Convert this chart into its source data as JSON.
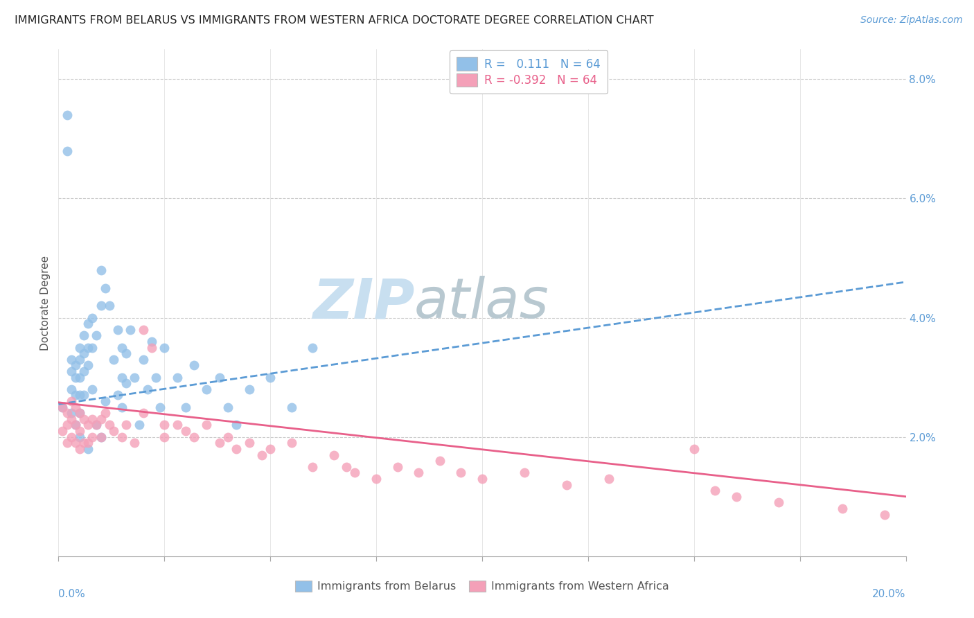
{
  "title": "IMMIGRANTS FROM BELARUS VS IMMIGRANTS FROM WESTERN AFRICA DOCTORATE DEGREE CORRELATION CHART",
  "source": "Source: ZipAtlas.com",
  "ylabel": "Doctorate Degree",
  "xlim": [
    0.0,
    0.2
  ],
  "ylim": [
    0.0,
    0.085
  ],
  "r_belarus": 0.111,
  "n_belarus": 64,
  "r_western_africa": -0.392,
  "n_western_africa": 64,
  "color_belarus": "#92C0E8",
  "color_western_africa": "#F4A0B8",
  "color_trend_belarus": "#5B9BD5",
  "color_trend_western_africa": "#E8608A",
  "watermark_zip": "ZIP",
  "watermark_atlas": "atlas",
  "watermark_color_zip": "#C8DFF0",
  "watermark_color_atlas": "#B8C8D0",
  "background_color": "#FFFFFF",
  "bel_trend_start_y": 0.0255,
  "bel_trend_end_y": 0.046,
  "waf_trend_start_y": 0.0258,
  "waf_trend_end_y": 0.01,
  "bel_x": [
    0.001,
    0.002,
    0.002,
    0.003,
    0.003,
    0.003,
    0.003,
    0.004,
    0.004,
    0.004,
    0.004,
    0.005,
    0.005,
    0.005,
    0.005,
    0.005,
    0.005,
    0.006,
    0.006,
    0.006,
    0.006,
    0.007,
    0.007,
    0.007,
    0.007,
    0.008,
    0.008,
    0.008,
    0.009,
    0.009,
    0.01,
    0.01,
    0.01,
    0.011,
    0.011,
    0.012,
    0.013,
    0.014,
    0.014,
    0.015,
    0.015,
    0.015,
    0.016,
    0.016,
    0.017,
    0.018,
    0.019,
    0.02,
    0.021,
    0.022,
    0.023,
    0.024,
    0.025,
    0.028,
    0.03,
    0.032,
    0.035,
    0.038,
    0.04,
    0.042,
    0.045,
    0.05,
    0.055,
    0.06
  ],
  "bel_y": [
    0.025,
    0.074,
    0.068,
    0.033,
    0.031,
    0.028,
    0.024,
    0.032,
    0.03,
    0.027,
    0.022,
    0.035,
    0.033,
    0.03,
    0.027,
    0.024,
    0.02,
    0.037,
    0.034,
    0.031,
    0.027,
    0.039,
    0.035,
    0.032,
    0.018,
    0.04,
    0.035,
    0.028,
    0.037,
    0.022,
    0.048,
    0.042,
    0.02,
    0.045,
    0.026,
    0.042,
    0.033,
    0.038,
    0.027,
    0.035,
    0.03,
    0.025,
    0.034,
    0.029,
    0.038,
    0.03,
    0.022,
    0.033,
    0.028,
    0.036,
    0.03,
    0.025,
    0.035,
    0.03,
    0.025,
    0.032,
    0.028,
    0.03,
    0.025,
    0.022,
    0.028,
    0.03,
    0.025,
    0.035
  ],
  "waf_x": [
    0.001,
    0.001,
    0.002,
    0.002,
    0.002,
    0.003,
    0.003,
    0.003,
    0.004,
    0.004,
    0.004,
    0.005,
    0.005,
    0.005,
    0.006,
    0.006,
    0.007,
    0.007,
    0.008,
    0.008,
    0.009,
    0.01,
    0.01,
    0.011,
    0.012,
    0.013,
    0.015,
    0.016,
    0.018,
    0.02,
    0.02,
    0.022,
    0.025,
    0.025,
    0.028,
    0.03,
    0.032,
    0.035,
    0.038,
    0.04,
    0.042,
    0.045,
    0.048,
    0.05,
    0.055,
    0.06,
    0.065,
    0.068,
    0.07,
    0.075,
    0.08,
    0.085,
    0.09,
    0.095,
    0.1,
    0.11,
    0.12,
    0.13,
    0.15,
    0.155,
    0.16,
    0.17,
    0.185,
    0.195
  ],
  "waf_y": [
    0.025,
    0.021,
    0.024,
    0.022,
    0.019,
    0.026,
    0.023,
    0.02,
    0.025,
    0.022,
    0.019,
    0.024,
    0.021,
    0.018,
    0.023,
    0.019,
    0.022,
    0.019,
    0.023,
    0.02,
    0.022,
    0.023,
    0.02,
    0.024,
    0.022,
    0.021,
    0.02,
    0.022,
    0.019,
    0.024,
    0.038,
    0.035,
    0.022,
    0.02,
    0.022,
    0.021,
    0.02,
    0.022,
    0.019,
    0.02,
    0.018,
    0.019,
    0.017,
    0.018,
    0.019,
    0.015,
    0.017,
    0.015,
    0.014,
    0.013,
    0.015,
    0.014,
    0.016,
    0.014,
    0.013,
    0.014,
    0.012,
    0.013,
    0.018,
    0.011,
    0.01,
    0.009,
    0.008,
    0.007
  ]
}
